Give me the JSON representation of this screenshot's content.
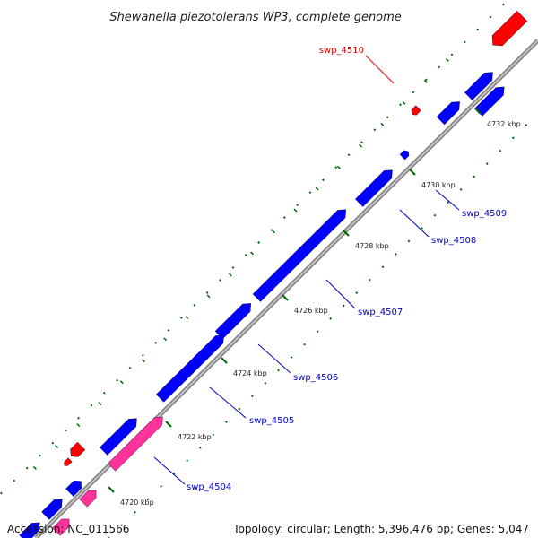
{
  "title": "Shewanella piezotolerans WP3, complete genome",
  "accession": {
    "label": "Accession:",
    "value": "NC_011566"
  },
  "stats": {
    "topology_label": "Topology:",
    "topology": "circular",
    "length_label": "Length:",
    "length": "5,396,476 bp",
    "genes_label": "Genes:",
    "genes": "5,047"
  },
  "colors": {
    "forward_gene": "#0000ff",
    "reverse_gene": "#ff0000",
    "rna_gene": "#ff3399",
    "backbone": "#888888",
    "tick": "#006600",
    "label_forward": "#0000cc",
    "label_reverse": "#dd0000"
  },
  "ticks": [
    {
      "label": "4720 kbp"
    },
    {
      "label": "4722 kbp"
    },
    {
      "label": "4724 kbp"
    },
    {
      "label": "4726 kbp"
    },
    {
      "label": "4728 kbp"
    },
    {
      "label": "4730 kbp"
    },
    {
      "label": "4732 kbp"
    }
  ],
  "genes": [
    {
      "name": "swp_4504",
      "strand": "forward"
    },
    {
      "name": "swp_4505",
      "strand": "forward"
    },
    {
      "name": "swp_4506",
      "strand": "forward"
    },
    {
      "name": "swp_4507",
      "strand": "forward"
    },
    {
      "name": "swp_4508",
      "strand": "forward"
    },
    {
      "name": "swp_4509",
      "strand": "forward"
    },
    {
      "name": "swp_4510",
      "strand": "reverse"
    }
  ]
}
